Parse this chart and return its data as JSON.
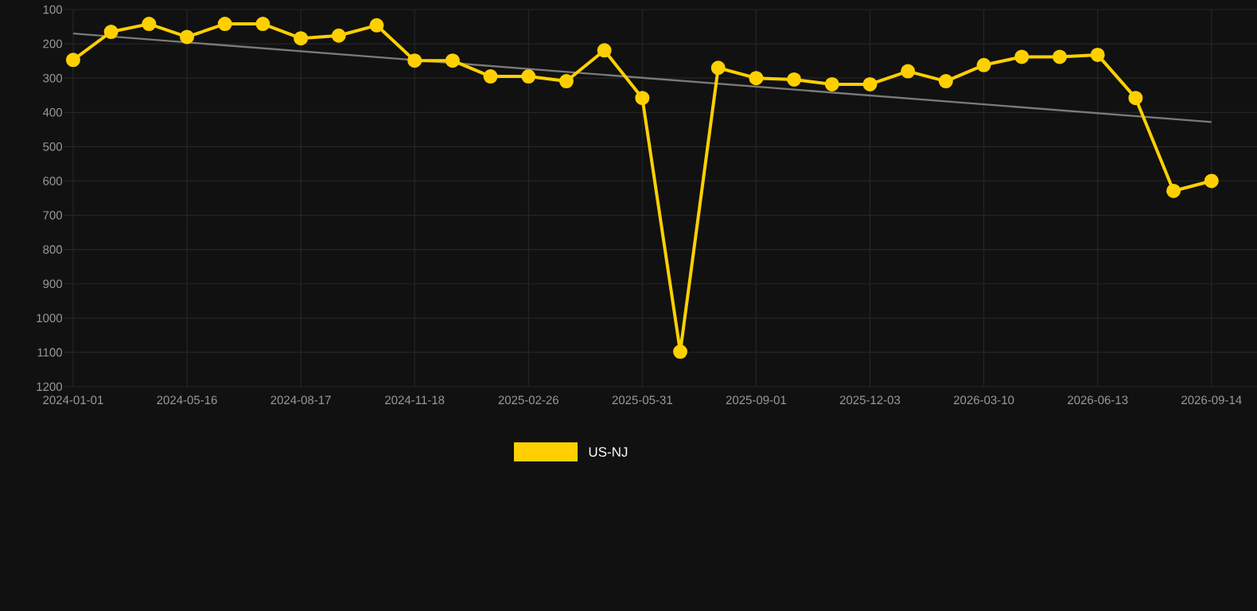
{
  "chart_data": {
    "type": "line",
    "categories": [
      "2024-01-01",
      null,
      null,
      "2024-05-16",
      null,
      null,
      "2024-08-17",
      null,
      null,
      "2024-11-18",
      null,
      null,
      "2025-02-26",
      null,
      null,
      "2025-05-31",
      null,
      null,
      "2025-09-01",
      null,
      null,
      "2025-12-03",
      null,
      null,
      "2026-03-10",
      null,
      null,
      "2026-06-13",
      null,
      null,
      "2026-09-14"
    ],
    "series": [
      {
        "name": "US-NJ",
        "color": "#ffd000",
        "marker": "circle",
        "values": [
          247,
          165,
          142,
          180,
          142,
          142,
          184,
          176,
          146,
          249,
          249,
          295,
          295,
          309,
          219,
          358,
          1098,
          270,
          300,
          304,
          318,
          318,
          280,
          309,
          262,
          238,
          238,
          232,
          358,
          629,
          600
        ]
      },
      {
        "color": "#7a7a7a",
        "marker": "none",
        "values": [
          170,
          null,
          null,
          null,
          null,
          null,
          null,
          null,
          null,
          null,
          null,
          null,
          null,
          null,
          null,
          null,
          null,
          null,
          null,
          null,
          null,
          null,
          null,
          null,
          null,
          null,
          null,
          null,
          null,
          null,
          428
        ]
      }
    ],
    "ylim": [
      1200,
      100
    ],
    "yticks": [
      100,
      200,
      300,
      400,
      500,
      600,
      700,
      800,
      900,
      1000,
      1100,
      1200
    ],
    "grid": true,
    "legend": "bottom"
  }
}
